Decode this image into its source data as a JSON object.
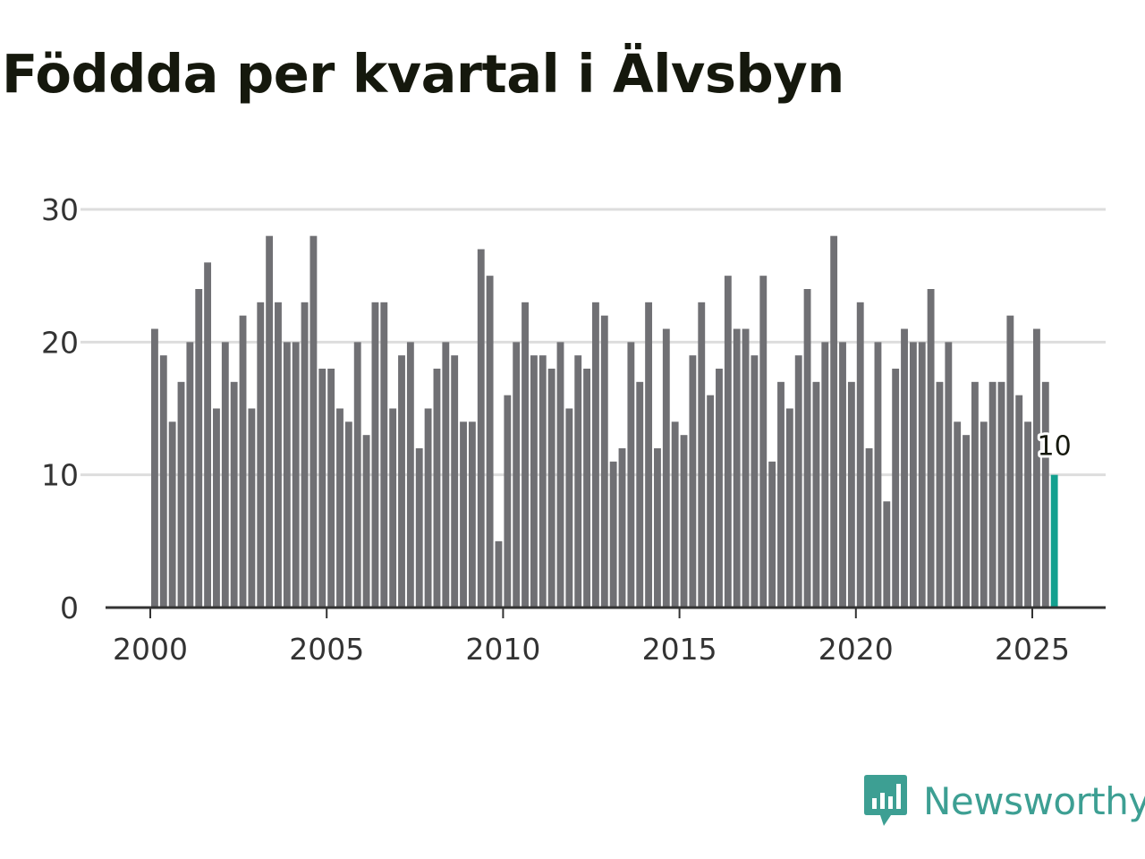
{
  "title": "Född­da per kvartal i Älvsbyn",
  "brand": {
    "name": "Newsworthy",
    "icon": "newsworthy-logo-icon",
    "color": "#3d9f93"
  },
  "colors": {
    "bar": "#707074",
    "highlight": "#13a08f",
    "grid": "#dddddd",
    "axis": "#333333"
  },
  "chart_data": {
    "type": "bar",
    "title": "Född­da per kvartal i Älvsbyn",
    "xlabel": "",
    "ylabel": "",
    "ylim": [
      0,
      30
    ],
    "yticks": [
      0,
      10,
      20,
      30
    ],
    "xticks": [
      2000,
      2005,
      2010,
      2015,
      2020,
      2025
    ],
    "start_year": 2000,
    "quarters_per_year": 4,
    "values": [
      21,
      19,
      14,
      17,
      20,
      24,
      26,
      15,
      20,
      17,
      22,
      15,
      23,
      28,
      23,
      20,
      20,
      23,
      28,
      18,
      18,
      15,
      14,
      20,
      13,
      23,
      23,
      15,
      19,
      20,
      12,
      15,
      18,
      20,
      19,
      14,
      14,
      27,
      25,
      5,
      16,
      20,
      23,
      19,
      19,
      18,
      20,
      15,
      19,
      18,
      23,
      22,
      11,
      12,
      20,
      17,
      23,
      12,
      21,
      14,
      13,
      19,
      23,
      16,
      18,
      25,
      21,
      21,
      19,
      25,
      11,
      17,
      15,
      19,
      24,
      17,
      20,
      28,
      20,
      17,
      23,
      12,
      20,
      8,
      18,
      21,
      20,
      20,
      24,
      17,
      20,
      14,
      13,
      17,
      14,
      17,
      17,
      22,
      16,
      14,
      21,
      17,
      10
    ],
    "highlight_index": 102,
    "highlight_label": "10",
    "grid": true
  }
}
